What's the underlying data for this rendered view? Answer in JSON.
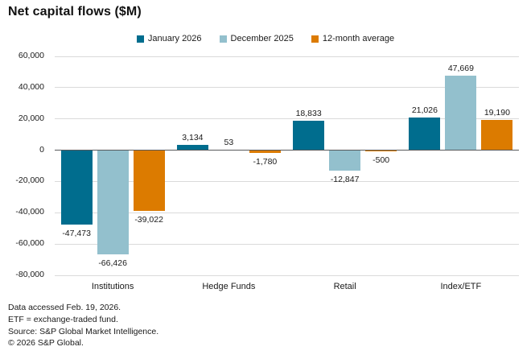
{
  "chart_data": {
    "type": "bar",
    "title": "Net capital flows ($M)",
    "xlabel": "",
    "ylabel": "",
    "categories": [
      "Institutions",
      "Hedge Funds",
      "Retail",
      "Index/ETF"
    ],
    "series": [
      {
        "name": "January 2026",
        "color": "#006D8E",
        "values": [
          -47473,
          3134,
          18833,
          21026
        ]
      },
      {
        "name": "December 2025",
        "color": "#93C0CD",
        "values": [
          -66426,
          53,
          -12847,
          47669
        ]
      },
      {
        "name": "12-month average",
        "color": "#DC7B00",
        "values": [
          -39022,
          -1780,
          -500,
          19190
        ]
      }
    ],
    "ylim": [
      -80000,
      60000
    ],
    "ytick_interval": 20000,
    "grid": true,
    "legend_position": "top",
    "value_labels": true
  },
  "colors": {
    "grid": "#DADADA",
    "zero_line": "#58595B",
    "text": "#1A1A1A"
  },
  "footnotes": [
    "Data accessed Feb. 19, 2026.",
    "ETF = exchange-traded fund.",
    "Source: S&P Global Market Intelligence.",
    "© 2026 S&P Global."
  ]
}
